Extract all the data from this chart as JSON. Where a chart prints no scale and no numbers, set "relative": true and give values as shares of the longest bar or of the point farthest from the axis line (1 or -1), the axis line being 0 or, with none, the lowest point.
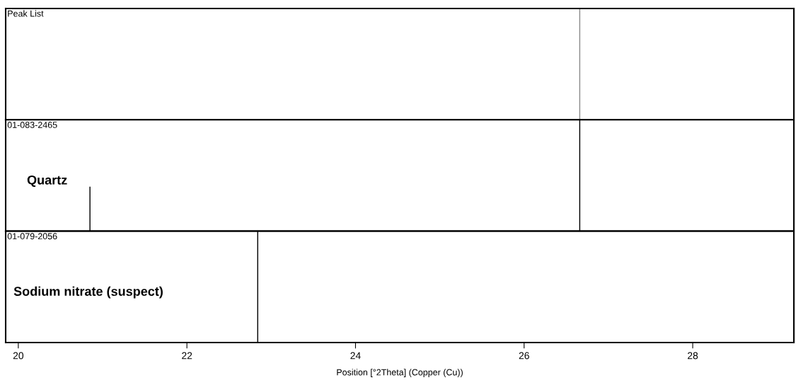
{
  "chart_data": [
    {
      "type": "bar",
      "title": "Peak List",
      "x": [
        26.66
      ],
      "values": [
        1
      ],
      "color": "#8c8c8c",
      "relative": true,
      "xlim": [
        19.85,
        29.2
      ],
      "tick_labels": false,
      "grid": false,
      "legend": false
    },
    {
      "type": "bar",
      "title": "01-083-2465",
      "subtitle": "Quartz",
      "x": [
        20.85,
        26.66
      ],
      "values": [
        0.4,
        1
      ],
      "color": "#000000",
      "relative": true,
      "xlim": [
        19.85,
        29.2
      ],
      "tick_labels": false,
      "grid": false,
      "legend": false
    },
    {
      "type": "bar",
      "title": "01-079-2056",
      "subtitle": "Sodium nitrate (suspect)",
      "x": [
        22.84
      ],
      "values": [
        1
      ],
      "color": "#000000",
      "relative": true,
      "xlim": [
        19.85,
        29.2
      ],
      "xticks": [
        20,
        22,
        24,
        26,
        28
      ],
      "xlabel": "Position [°2Theta] (Copper (Cu))",
      "tick_labels": "x",
      "grid": false,
      "legend": false
    }
  ]
}
